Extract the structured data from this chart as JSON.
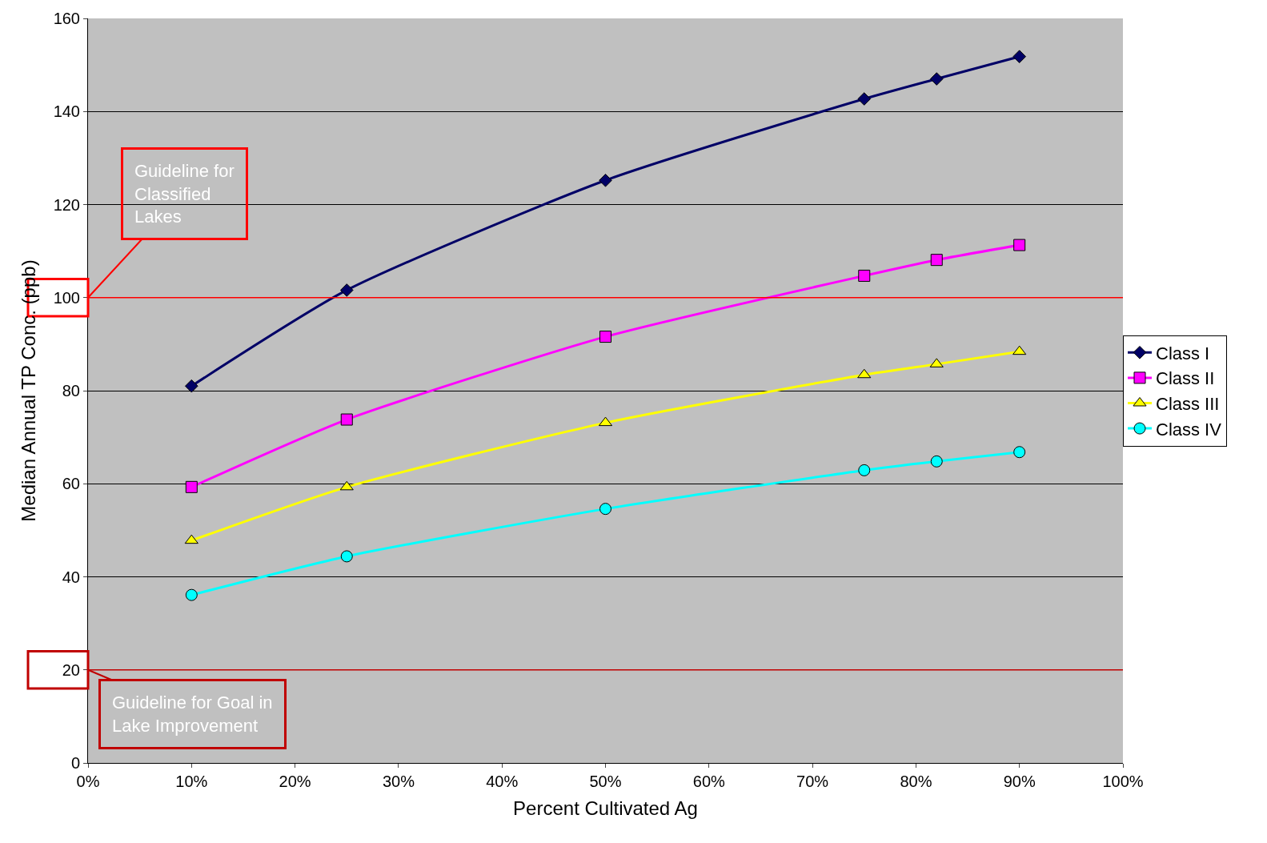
{
  "chart_data": {
    "type": "line",
    "xlabel": "Percent Cultivated Ag",
    "ylabel": "Median Annual TP Conc. (ppb)",
    "x": [
      10,
      25,
      50,
      75,
      82,
      90
    ],
    "series": [
      {
        "name": "Class I",
        "color": "#000066",
        "marker": "diamond",
        "values": [
          81.0,
          101.6,
          125.2,
          142.7,
          147.0,
          151.8
        ]
      },
      {
        "name": "Class II",
        "color": "#ff00ff",
        "marker": "square",
        "values": [
          59.3,
          73.8,
          91.6,
          104.7,
          108.1,
          111.3
        ]
      },
      {
        "name": "Class III",
        "color": "#ffff00",
        "marker": "triangle",
        "values": [
          47.8,
          59.3,
          73.1,
          83.4,
          85.7,
          88.4
        ]
      },
      {
        "name": "Class IV",
        "color": "#00ffff",
        "marker": "circle",
        "values": [
          36.1,
          44.4,
          54.6,
          62.9,
          64.8,
          66.8
        ]
      }
    ],
    "xlim": [
      0,
      100
    ],
    "xticks": [
      {
        "value": 0,
        "label": "0%"
      },
      {
        "value": 10,
        "label": "10%"
      },
      {
        "value": 20,
        "label": "20%"
      },
      {
        "value": 30,
        "label": "30%"
      },
      {
        "value": 40,
        "label": "40%"
      },
      {
        "value": 50,
        "label": "50%"
      },
      {
        "value": 60,
        "label": "60%"
      },
      {
        "value": 70,
        "label": "70%"
      },
      {
        "value": 80,
        "label": "80%"
      },
      {
        "value": 90,
        "label": "90%"
      },
      {
        "value": 100,
        "label": "100%"
      }
    ],
    "ylim": [
      0,
      160
    ],
    "yticks": [
      0,
      20,
      40,
      60,
      80,
      100,
      120,
      140,
      160
    ],
    "ref_lines": [
      {
        "axis": "y",
        "value": 100,
        "color": "#ff0000"
      },
      {
        "axis": "y",
        "value": 20,
        "color": "#c00000"
      }
    ],
    "annotations": [
      {
        "text": "Guideline for\nClassified\nLakes",
        "x": 0,
        "y": 100
      },
      {
        "text": "Guideline for Goal in\nLake Improvement",
        "x": 0,
        "y": 20
      }
    ],
    "grid": "y",
    "legend": "right",
    "line_style": "solid"
  }
}
